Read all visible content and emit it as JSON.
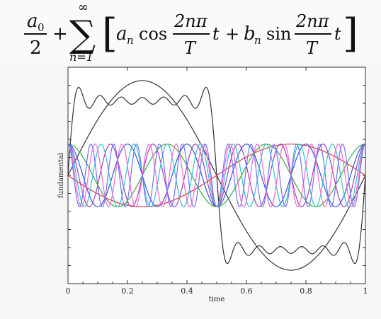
{
  "formula": {
    "a0": "a",
    "a0_sub": "0",
    "two": "2",
    "plus1": "+",
    "sum_upper": "∞",
    "sum_sign": "∑",
    "sum_lower": "n=1",
    "lbracket": "[",
    "a_n": "a",
    "a_n_sub": "n",
    "cos": "cos",
    "frac1_num": "2nπ",
    "frac1_den": "T",
    "t1": "t",
    "plus2": "+",
    "b_n": "b",
    "b_n_sub": "n",
    "sin": "sin",
    "frac2_num": "2nπ",
    "frac2_den": "T",
    "t2": "t",
    "rbracket": "]"
  },
  "chart_data": {
    "type": "line",
    "xlabel": "time",
    "ylabel": "fundamental",
    "xlim": [
      0,
      1
    ],
    "ylim": [
      -1.45,
      1.45
    ],
    "xticks": [
      "0",
      "0.2",
      "0.4",
      "0.6",
      "0.8",
      "1"
    ],
    "xtick_values": [
      0,
      0.2,
      0.4,
      0.6,
      0.8,
      1
    ],
    "grid": false,
    "series": [
      {
        "expr": "partial_sum",
        "harmonics": [
          1,
          3,
          5,
          7,
          9,
          11,
          13
        ],
        "color": "#333333"
      },
      {
        "expr": "fundamental",
        "harmonic": 1,
        "amplitude": 1.27,
        "color": "#333333"
      },
      {
        "expr": "harmonic",
        "harmonic": 1,
        "amplitude": 0.42,
        "color": "#e0393a"
      },
      {
        "expr": "harmonic",
        "harmonic": 3,
        "amplitude": 0.42,
        "color": "#33aa44"
      },
      {
        "expr": "harmonic",
        "harmonic": 5,
        "amplitude": 0.42,
        "color": "#3355dd"
      },
      {
        "expr": "harmonic",
        "harmonic": 7,
        "amplitude": 0.42,
        "color": "#a040c0"
      },
      {
        "expr": "harmonic",
        "harmonic": 9,
        "amplitude": 0.42,
        "color": "#30c0d0"
      },
      {
        "expr": "harmonic",
        "harmonic": 11,
        "amplitude": 0.42,
        "color": "#ff66cc"
      },
      {
        "expr": "harmonic",
        "harmonic": 13,
        "amplitude": 0.42,
        "color": "#7070ff"
      }
    ]
  }
}
